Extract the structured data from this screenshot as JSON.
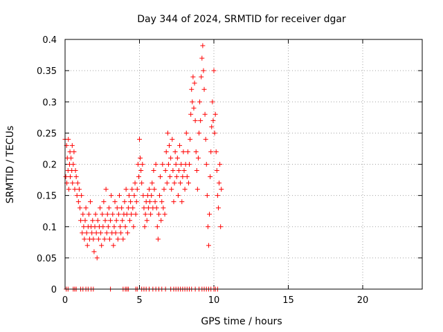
{
  "chart_data": {
    "type": "scatter",
    "title": "Day 344 of 2024, SRMTID for receiver dgar",
    "xlabel": "GPS time / hours",
    "ylabel": "SRMTID / TECUs",
    "xlim": [
      0,
      24
    ],
    "ylim": [
      0,
      0.4
    ],
    "xticks": [
      0,
      5,
      10,
      15,
      20
    ],
    "yticks": [
      0,
      0.05,
      0.1,
      0.15,
      0.2,
      0.25,
      0.3,
      0.35,
      0.4
    ],
    "xtick_labels": [
      "0",
      "5",
      "10",
      "15",
      "20"
    ],
    "ytick_labels": [
      "0",
      "0.05",
      "0.1",
      "0.15",
      "0.2",
      "0.25",
      "0.3",
      "0.35",
      "0.4"
    ],
    "grid": true,
    "marker": "+",
    "color": "#ff0000",
    "series": [
      {
        "name": "SRMTID",
        "points": [
          [
            0.0,
            0.24
          ],
          [
            0.05,
            0.18
          ],
          [
            0.1,
            0.23
          ],
          [
            0.12,
            0.17
          ],
          [
            0.15,
            0.21
          ],
          [
            0.2,
            0.19
          ],
          [
            0.22,
            0.24
          ],
          [
            0.25,
            0.16
          ],
          [
            0.3,
            0.2
          ],
          [
            0.33,
            0.22
          ],
          [
            0.35,
            0.18
          ],
          [
            0.4,
            0.21
          ],
          [
            0.45,
            0.19
          ],
          [
            0.48,
            0.23
          ],
          [
            0.5,
            0.17
          ],
          [
            0.55,
            0.2
          ],
          [
            0.6,
            0.22
          ],
          [
            0.65,
            0.16
          ],
          [
            0.7,
            0.19
          ],
          [
            0.75,
            0.18
          ],
          [
            0.8,
            0.15
          ],
          [
            0.85,
            0.17
          ],
          [
            0.9,
            0.14
          ],
          [
            0.95,
            0.16
          ],
          [
            1.0,
            0.13
          ],
          [
            1.05,
            0.11
          ],
          [
            1.1,
            0.15
          ],
          [
            1.15,
            0.09
          ],
          [
            1.2,
            0.12
          ],
          [
            1.25,
            0.1
          ],
          [
            1.3,
            0.08
          ],
          [
            1.35,
            0.11
          ],
          [
            1.4,
            0.13
          ],
          [
            1.45,
            0.09
          ],
          [
            1.5,
            0.07
          ],
          [
            1.55,
            0.1
          ],
          [
            1.6,
            0.12
          ],
          [
            1.65,
            0.08
          ],
          [
            1.7,
            0.14
          ],
          [
            1.75,
            0.1
          ],
          [
            1.8,
            0.09
          ],
          [
            1.85,
            0.11
          ],
          [
            1.9,
            0.08
          ],
          [
            1.95,
            0.06
          ],
          [
            2.0,
            0.1
          ],
          [
            2.05,
            0.12
          ],
          [
            2.1,
            0.09
          ],
          [
            2.15,
            0.05
          ],
          [
            2.2,
            0.11
          ],
          [
            2.25,
            0.08
          ],
          [
            2.3,
            0.1
          ],
          [
            2.35,
            0.13
          ],
          [
            2.4,
            0.09
          ],
          [
            2.45,
            0.07
          ],
          [
            2.5,
            0.12
          ],
          [
            2.55,
            0.1
          ],
          [
            2.6,
            0.14
          ],
          [
            2.65,
            0.08
          ],
          [
            2.7,
            0.11
          ],
          [
            2.75,
            0.16
          ],
          [
            2.8,
            0.09
          ],
          [
            2.85,
            0.12
          ],
          [
            2.9,
            0.1
          ],
          [
            2.95,
            0.13
          ],
          [
            3.0,
            0.08
          ],
          [
            3.05,
            0.11
          ],
          [
            3.1,
            0.15
          ],
          [
            3.15,
            0.09
          ],
          [
            3.2,
            0.12
          ],
          [
            3.25,
            0.07
          ],
          [
            3.3,
            0.1
          ],
          [
            3.35,
            0.14
          ],
          [
            3.4,
            0.09
          ],
          [
            3.45,
            0.11
          ],
          [
            3.5,
            0.13
          ],
          [
            3.55,
            0.08
          ],
          [
            3.6,
            0.12
          ],
          [
            3.65,
            0.15
          ],
          [
            3.7,
            0.1
          ],
          [
            3.75,
            0.09
          ],
          [
            3.8,
            0.13
          ],
          [
            3.85,
            0.11
          ],
          [
            3.9,
            0.08
          ],
          [
            3.95,
            0.12
          ],
          [
            4.0,
            0.14
          ],
          [
            4.05,
            0.1
          ],
          [
            4.1,
            0.16
          ],
          [
            4.15,
            0.12
          ],
          [
            4.2,
            0.09
          ],
          [
            4.25,
            0.13
          ],
          [
            4.3,
            0.15
          ],
          [
            4.35,
            0.11
          ],
          [
            4.4,
            0.14
          ],
          [
            4.45,
            0.12
          ],
          [
            4.5,
            0.16
          ],
          [
            4.55,
            0.13
          ],
          [
            4.6,
            0.1
          ],
          [
            4.65,
            0.15
          ],
          [
            4.7,
            0.17
          ],
          [
            4.75,
            0.12
          ],
          [
            4.8,
            0.14
          ],
          [
            4.85,
            0.16
          ],
          [
            4.9,
            0.2
          ],
          [
            4.95,
            0.18
          ],
          [
            5.0,
            0.24
          ],
          [
            5.05,
            0.21
          ],
          [
            5.1,
            0.19
          ],
          [
            5.15,
            0.17
          ],
          [
            5.2,
            0.2
          ],
          [
            5.25,
            0.15
          ],
          [
            5.3,
            0.13
          ],
          [
            5.35,
            0.1
          ],
          [
            5.4,
            0.12
          ],
          [
            5.45,
            0.14
          ],
          [
            5.5,
            0.11
          ],
          [
            5.55,
            0.15
          ],
          [
            5.6,
            0.13
          ],
          [
            5.65,
            0.16
          ],
          [
            5.7,
            0.14
          ],
          [
            5.75,
            0.12
          ],
          [
            5.8,
            0.15
          ],
          [
            5.85,
            0.17
          ],
          [
            5.9,
            0.13
          ],
          [
            5.95,
            0.19
          ],
          [
            6.0,
            0.16
          ],
          [
            6.05,
            0.14
          ],
          [
            6.1,
            0.2
          ],
          [
            6.15,
            0.13
          ],
          [
            6.2,
            0.1
          ],
          [
            6.25,
            0.08
          ],
          [
            6.3,
            0.12
          ],
          [
            6.35,
            0.15
          ],
          [
            6.4,
            0.18
          ],
          [
            6.45,
            0.11
          ],
          [
            6.5,
            0.14
          ],
          [
            6.55,
            0.2
          ],
          [
            6.6,
            0.13
          ],
          [
            6.65,
            0.16
          ],
          [
            6.7,
            0.12
          ],
          [
            6.75,
            0.19
          ],
          [
            6.8,
            0.22
          ],
          [
            6.85,
            0.17
          ],
          [
            6.9,
            0.25
          ],
          [
            6.95,
            0.2
          ],
          [
            7.0,
            0.23
          ],
          [
            7.05,
            0.18
          ],
          [
            7.1,
            0.21
          ],
          [
            7.15,
            0.16
          ],
          [
            7.2,
            0.24
          ],
          [
            7.25,
            0.19
          ],
          [
            7.3,
            0.14
          ],
          [
            7.35,
            0.17
          ],
          [
            7.4,
            0.22
          ],
          [
            7.45,
            0.2
          ],
          [
            7.5,
            0.18
          ],
          [
            7.55,
            0.21
          ],
          [
            7.6,
            0.15
          ],
          [
            7.65,
            0.19
          ],
          [
            7.7,
            0.23
          ],
          [
            7.75,
            0.17
          ],
          [
            7.8,
            0.2
          ],
          [
            7.85,
            0.14
          ],
          [
            7.9,
            0.18
          ],
          [
            7.95,
            0.22
          ],
          [
            8.0,
            0.19
          ],
          [
            8.05,
            0.16
          ],
          [
            8.1,
            0.2
          ],
          [
            8.15,
            0.25
          ],
          [
            8.2,
            0.18
          ],
          [
            8.25,
            0.22
          ],
          [
            8.3,
            0.17
          ],
          [
            8.35,
            0.2
          ],
          [
            8.4,
            0.24
          ],
          [
            8.45,
            0.28
          ],
          [
            8.5,
            0.32
          ],
          [
            8.55,
            0.3
          ],
          [
            8.6,
            0.34
          ],
          [
            8.65,
            0.29
          ],
          [
            8.7,
            0.33
          ],
          [
            8.75,
            0.27
          ],
          [
            8.8,
            0.22
          ],
          [
            8.85,
            0.19
          ],
          [
            8.9,
            0.16
          ],
          [
            8.95,
            0.21
          ],
          [
            9.0,
            0.25
          ],
          [
            9.05,
            0.3
          ],
          [
            9.1,
            0.27
          ],
          [
            9.15,
            0.34
          ],
          [
            9.2,
            0.37
          ],
          [
            9.25,
            0.39
          ],
          [
            9.3,
            0.35
          ],
          [
            9.35,
            0.32
          ],
          [
            9.4,
            0.28
          ],
          [
            9.45,
            0.24
          ],
          [
            9.5,
            0.2
          ],
          [
            9.55,
            0.15
          ],
          [
            9.6,
            0.1
          ],
          [
            9.65,
            0.07
          ],
          [
            9.7,
            0.12
          ],
          [
            9.75,
            0.18
          ],
          [
            9.8,
            0.22
          ],
          [
            9.85,
            0.26
          ],
          [
            9.9,
            0.3
          ],
          [
            9.95,
            0.27
          ],
          [
            10.0,
            0.35
          ],
          [
            10.05,
            0.25
          ],
          [
            10.1,
            0.28
          ],
          [
            10.15,
            0.22
          ],
          [
            10.2,
            0.19
          ],
          [
            10.25,
            0.15
          ],
          [
            10.3,
            0.13
          ],
          [
            10.35,
            0.17
          ],
          [
            10.4,
            0.2
          ],
          [
            10.45,
            0.1
          ],
          [
            10.5,
            0.16
          ],
          [
            0.08,
            0.0
          ],
          [
            0.2,
            0.0
          ],
          [
            0.55,
            0.0
          ],
          [
            0.65,
            0.0
          ],
          [
            0.75,
            0.0
          ],
          [
            1.05,
            0.0
          ],
          [
            1.2,
            0.0
          ],
          [
            1.4,
            0.0
          ],
          [
            1.55,
            0.0
          ],
          [
            1.75,
            0.0
          ],
          [
            1.9,
            0.0
          ],
          [
            3.05,
            0.0
          ],
          [
            3.9,
            0.0
          ],
          [
            4.05,
            0.0
          ],
          [
            4.15,
            0.0
          ],
          [
            4.25,
            0.0
          ],
          [
            4.75,
            0.0
          ],
          [
            4.85,
            0.0
          ],
          [
            5.15,
            0.0
          ],
          [
            5.3,
            0.0
          ],
          [
            5.45,
            0.0
          ],
          [
            5.65,
            0.0
          ],
          [
            5.9,
            0.0
          ],
          [
            6.1,
            0.0
          ],
          [
            6.3,
            0.0
          ],
          [
            6.5,
            0.0
          ],
          [
            6.75,
            0.0
          ],
          [
            7.1,
            0.0
          ],
          [
            7.3,
            0.0
          ],
          [
            7.45,
            0.0
          ],
          [
            7.6,
            0.0
          ],
          [
            7.75,
            0.0
          ],
          [
            7.9,
            0.0
          ],
          [
            8.05,
            0.0
          ],
          [
            8.2,
            0.0
          ],
          [
            8.35,
            0.0
          ],
          [
            8.5,
            0.0
          ],
          [
            8.75,
            0.0
          ],
          [
            9.0,
            0.0
          ],
          [
            9.2,
            0.0
          ],
          [
            9.35,
            0.0
          ],
          [
            9.5,
            0.0
          ],
          [
            9.65,
            0.0
          ],
          [
            9.8,
            0.0
          ],
          [
            10.0,
            0.0
          ],
          [
            10.1,
            0.0
          ],
          [
            10.25,
            0.0
          ]
        ]
      }
    ]
  }
}
